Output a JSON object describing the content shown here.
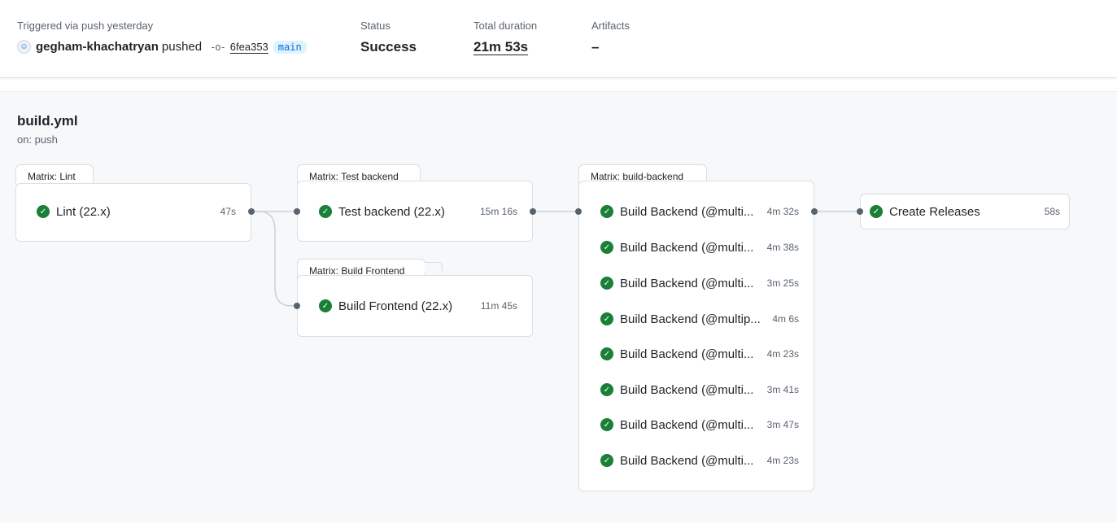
{
  "summary": {
    "trigger_label": "Triggered via push yesterday",
    "actor": "gegham-khachatryan",
    "action": "pushed",
    "commit_sha": "6fea353",
    "branch": "main",
    "status_label": "Status",
    "status_value": "Success",
    "duration_label": "Total duration",
    "duration_value": "21m 53s",
    "artifacts_label": "Artifacts",
    "artifacts_value": "–"
  },
  "workflow": {
    "name": "build.yml",
    "trigger": "on: push"
  },
  "groups": {
    "lint": {
      "title": "Matrix: Lint",
      "jobs": [
        {
          "name": "Lint (22.x)",
          "time": "47s"
        }
      ]
    },
    "test_backend": {
      "title": "Matrix: Test backend",
      "jobs": [
        {
          "name": "Test backend (22.x)",
          "time": "15m 16s"
        }
      ]
    },
    "build_frontend": {
      "title": "Matrix: Build Frontend",
      "jobs": [
        {
          "name": "Build Frontend (22.x)",
          "time": "11m 45s"
        }
      ]
    },
    "build_backend": {
      "title": "Matrix: build-backend",
      "jobs": [
        {
          "name": "Build Backend (@multi...",
          "time": "4m 32s"
        },
        {
          "name": "Build Backend (@multi...",
          "time": "4m 38s"
        },
        {
          "name": "Build Backend (@multi...",
          "time": "3m 25s"
        },
        {
          "name": "Build Backend (@multip...",
          "time": "4m 6s"
        },
        {
          "name": "Build Backend (@multi...",
          "time": "4m 23s"
        },
        {
          "name": "Build Backend (@multi...",
          "time": "3m 41s"
        },
        {
          "name": "Build Backend (@multi...",
          "time": "3m 47s"
        },
        {
          "name": "Build Backend (@multi...",
          "time": "4m 23s"
        }
      ]
    },
    "create_releases": {
      "jobs": [
        {
          "name": "Create Releases",
          "time": "58s"
        }
      ]
    }
  },
  "icons": {
    "success": "check-circle-icon",
    "commit": "git-commit-icon",
    "avatar": "user-avatar"
  },
  "colors": {
    "success": "#1a7f37",
    "branch_bg": "#ddf4ff",
    "branch_fg": "#0969da",
    "graph_bg": "#f6f8fa"
  }
}
